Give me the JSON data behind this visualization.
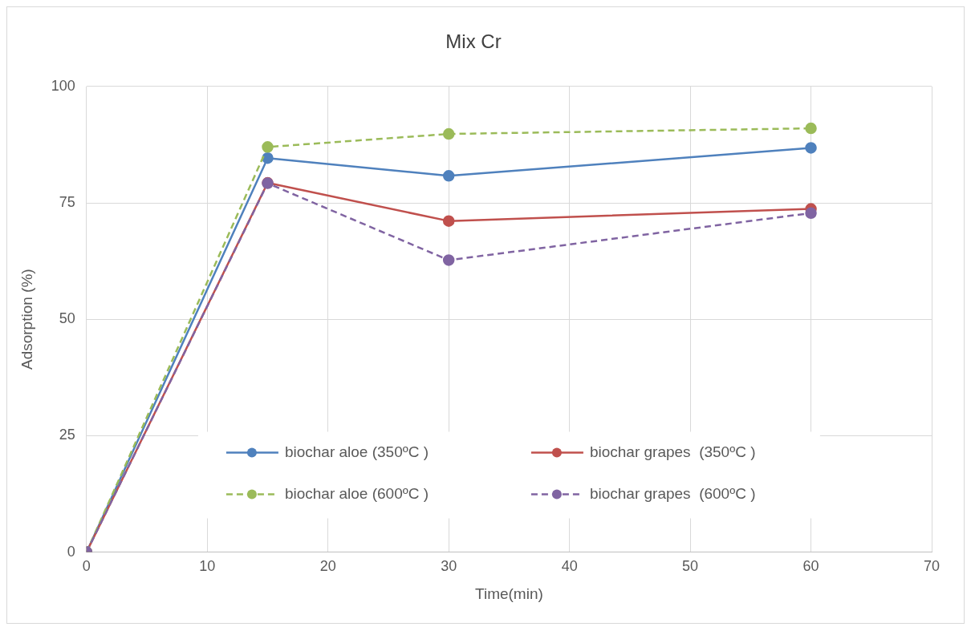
{
  "chart_data": {
    "type": "line",
    "title": "Mix Cr",
    "xlabel": "Time(min)",
    "ylabel": "Adsorption (%)",
    "x": [
      0,
      15,
      30,
      60
    ],
    "series": [
      {
        "name": "biochar aloe (350ºC )",
        "color": "#4f81bd",
        "line_style": "solid",
        "values": [
          0,
          84.6,
          80.8,
          86.8
        ]
      },
      {
        "name": "biochar grapes  (350ºC )",
        "color": "#c0504d",
        "line_style": "solid",
        "values": [
          0,
          79.3,
          71.1,
          73.7
        ]
      },
      {
        "name": "biochar aloe (600ºC )",
        "color": "#9bbb59",
        "line_style": "dashed",
        "values": [
          0,
          87.0,
          89.8,
          91.0
        ]
      },
      {
        "name": "biochar grapes  (600ºC )",
        "color": "#8064a2",
        "line_style": "dashed",
        "values": [
          0,
          79.2,
          62.7,
          72.8
        ]
      }
    ],
    "xlim": [
      0,
      70
    ],
    "xticks": [
      0,
      10,
      20,
      30,
      40,
      50,
      60,
      70
    ],
    "ylim": [
      0,
      100
    ],
    "yticks": [
      0,
      25,
      50,
      75,
      100
    ],
    "grid": true,
    "legend": "bottom",
    "marker": "circle"
  }
}
